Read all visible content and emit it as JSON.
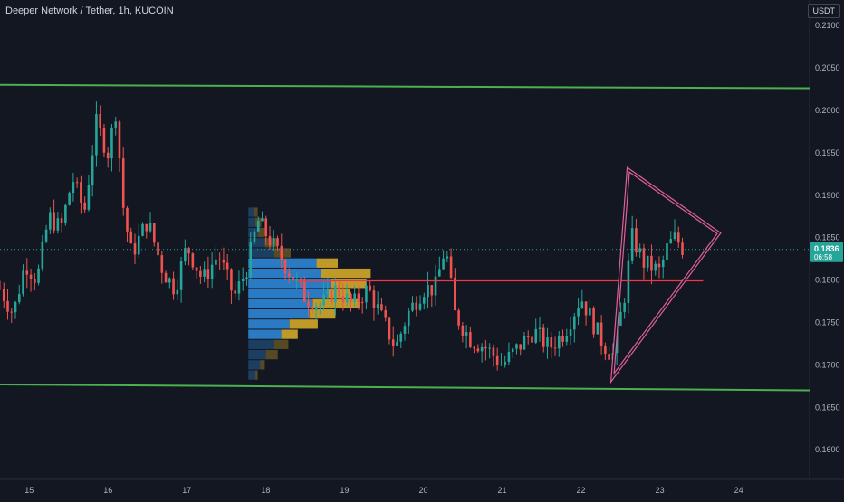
{
  "header": {
    "title": "Deeper Network / Tether, 1h, KUCOIN"
  },
  "currency": "USDT",
  "last_price": {
    "price": "0.1836",
    "countdown": "06:58"
  },
  "colors": {
    "background": "#131722",
    "up": "#26a69a",
    "down": "#ef5350",
    "channel": "#4caf50",
    "triangle": "#e0609a",
    "poc_line": "#f23645",
    "vp_blue": "#2f86d6",
    "vp_yellow": "#d4a82a"
  },
  "chart_data": {
    "type": "candlestick",
    "title": "Deeper Network / Tether, 1h, KUCOIN",
    "y_ticks": [
      "0.2100",
      "0.2050",
      "0.2000",
      "0.1950",
      "0.1900",
      "0.1850",
      "0.1800",
      "0.1750",
      "0.1700",
      "0.1650",
      "0.1600"
    ],
    "ylim": [
      0.1565,
      0.213
    ],
    "x_ticks": [
      {
        "label": "15",
        "day": 15
      },
      {
        "label": "16",
        "day": 16
      },
      {
        "label": "17",
        "day": 17
      },
      {
        "label": "18",
        "day": 18
      },
      {
        "label": "19",
        "day": 19
      },
      {
        "label": "20",
        "day": 20
      },
      {
        "label": "21",
        "day": 21
      },
      {
        "label": "22",
        "day": 22
      },
      {
        "label": "23",
        "day": 23
      },
      {
        "label": "24",
        "day": 24
      }
    ],
    "xlim": [
      14.63,
      24.9
    ],
    "current_price": 0.1836,
    "channel_upper": {
      "from": [
        14.63,
        0.203
      ],
      "to": [
        24.9,
        0.2026
      ]
    },
    "channel_lower": {
      "from": [
        14.63,
        0.1677
      ],
      "to": [
        24.9,
        0.167
      ]
    },
    "poc_line": {
      "from": [
        18.4,
        0.1799
      ],
      "to": [
        23.55,
        0.1799
      ]
    },
    "triangle": {
      "points": [
        [
          22.6,
          0.193
        ],
        [
          23.75,
          0.1855
        ],
        [
          22.4,
          0.1685
        ]
      ]
    },
    "volume_profile": {
      "start_day": 17.78,
      "levels": [
        {
          "price": 0.188,
          "blue": 0.05,
          "yellow": 0.03
        },
        {
          "price": 0.1868,
          "blue": 0.06,
          "yellow": 0.05
        },
        {
          "price": 0.1856,
          "blue": 0.08,
          "yellow": 0.06
        },
        {
          "price": 0.1844,
          "blue": 0.14,
          "yellow": 0.11
        },
        {
          "price": 0.1832,
          "blue": 0.22,
          "yellow": 0.14
        },
        {
          "price": 0.182,
          "blue": 0.58,
          "yellow": 0.18
        },
        {
          "price": 0.1808,
          "blue": 0.62,
          "yellow": 0.42
        },
        {
          "price": 0.1796,
          "blue": 0.7,
          "yellow": 0.3
        },
        {
          "price": 0.1784,
          "blue": 0.68,
          "yellow": 0.18
        },
        {
          "price": 0.1772,
          "blue": 0.55,
          "yellow": 0.4
        },
        {
          "price": 0.176,
          "blue": 0.52,
          "yellow": 0.22
        },
        {
          "price": 0.1748,
          "blue": 0.35,
          "yellow": 0.24
        },
        {
          "price": 0.1736,
          "blue": 0.28,
          "yellow": 0.14
        },
        {
          "price": 0.1724,
          "blue": 0.22,
          "yellow": 0.12
        },
        {
          "price": 0.1712,
          "blue": 0.15,
          "yellow": 0.1
        },
        {
          "price": 0.17,
          "blue": 0.1,
          "yellow": 0.04
        },
        {
          "price": 0.1688,
          "blue": 0.06,
          "yellow": 0.02
        }
      ]
    },
    "path_points": [
      [
        14.63,
        0.179
      ],
      [
        14.8,
        0.176
      ],
      [
        14.95,
        0.182
      ],
      [
        15.1,
        0.18
      ],
      [
        15.25,
        0.1875
      ],
      [
        15.4,
        0.186
      ],
      [
        15.55,
        0.192
      ],
      [
        15.7,
        0.188
      ],
      [
        15.85,
        0.1985
      ],
      [
        16.0,
        0.195
      ],
      [
        16.1,
        0.2
      ],
      [
        16.2,
        0.188
      ],
      [
        16.3,
        0.183
      ],
      [
        16.5,
        0.187
      ],
      [
        16.7,
        0.181
      ],
      [
        16.85,
        0.179
      ],
      [
        17.0,
        0.184
      ],
      [
        17.2,
        0.18
      ],
      [
        17.4,
        0.183
      ],
      [
        17.6,
        0.178
      ],
      [
        17.75,
        0.181
      ],
      [
        17.9,
        0.187
      ],
      [
        18.1,
        0.184
      ],
      [
        18.3,
        0.181
      ],
      [
        18.5,
        0.178
      ],
      [
        18.7,
        0.177
      ],
      [
        18.9,
        0.179
      ],
      [
        19.1,
        0.177
      ],
      [
        19.3,
        0.179
      ],
      [
        19.5,
        0.175
      ],
      [
        19.65,
        0.172
      ],
      [
        19.8,
        0.176
      ],
      [
        20.0,
        0.179
      ],
      [
        20.15,
        0.179
      ],
      [
        20.28,
        0.184
      ],
      [
        20.4,
        0.176
      ],
      [
        20.6,
        0.173
      ],
      [
        20.8,
        0.172
      ],
      [
        21.0,
        0.17
      ],
      [
        21.2,
        0.172
      ],
      [
        21.4,
        0.174
      ],
      [
        21.6,
        0.172
      ],
      [
        21.8,
        0.174
      ],
      [
        22.0,
        0.178
      ],
      [
        22.1,
        0.176
      ],
      [
        22.25,
        0.173
      ],
      [
        22.4,
        0.171
      ],
      [
        22.55,
        0.178
      ],
      [
        22.65,
        0.185
      ],
      [
        22.8,
        0.182
      ],
      [
        23.0,
        0.181
      ],
      [
        23.1,
        0.184
      ],
      [
        23.2,
        0.185
      ],
      [
        23.3,
        0.1836
      ]
    ]
  }
}
